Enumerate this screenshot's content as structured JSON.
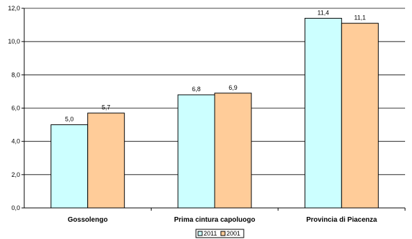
{
  "chart_data": {
    "type": "bar",
    "categories": [
      "Gossolengo",
      "Prima cintura capoluogo",
      "Provincia di Piacenza"
    ],
    "series": [
      {
        "name": "2011",
        "values": [
          5.0,
          6.8,
          11.4
        ],
        "color": "#ccffff",
        "labels": [
          "5,0",
          "6,8",
          "11,4"
        ]
      },
      {
        "name": "2001",
        "values": [
          5.7,
          6.9,
          11.1
        ],
        "color": "#ffcc99",
        "labels": [
          "5,7",
          "6,9",
          "11,1"
        ]
      }
    ],
    "ylim": [
      0,
      12
    ],
    "yticks": [
      0,
      2,
      4,
      6,
      8,
      10,
      12
    ],
    "ytick_labels": [
      "0,0",
      "2,0",
      "4,0",
      "6,0",
      "8,0",
      "10,0",
      "12,0"
    ],
    "grid": true,
    "legend": "bottom-center",
    "title": "",
    "xlabel": "",
    "ylabel": ""
  }
}
